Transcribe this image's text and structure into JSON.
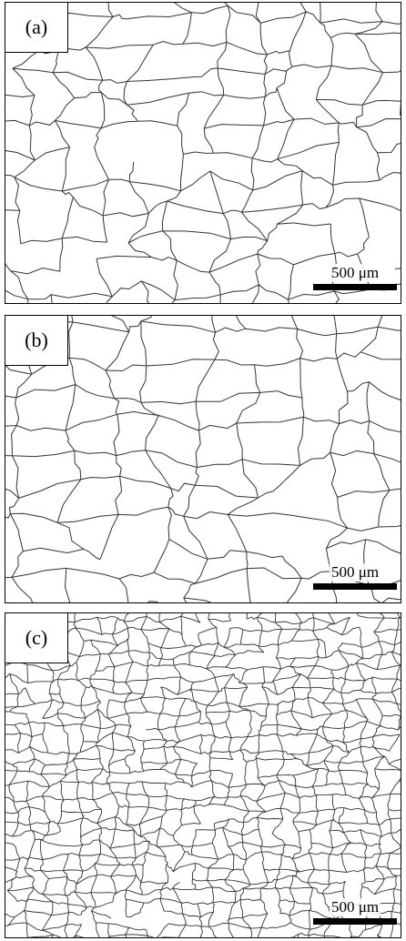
{
  "panels": [
    {
      "label": "(a)",
      "scale_bar": "500 μm"
    },
    {
      "label": "(b)",
      "scale_bar": "500 μm"
    },
    {
      "label": "(c)",
      "scale_bar": "500 μm"
    }
  ]
}
